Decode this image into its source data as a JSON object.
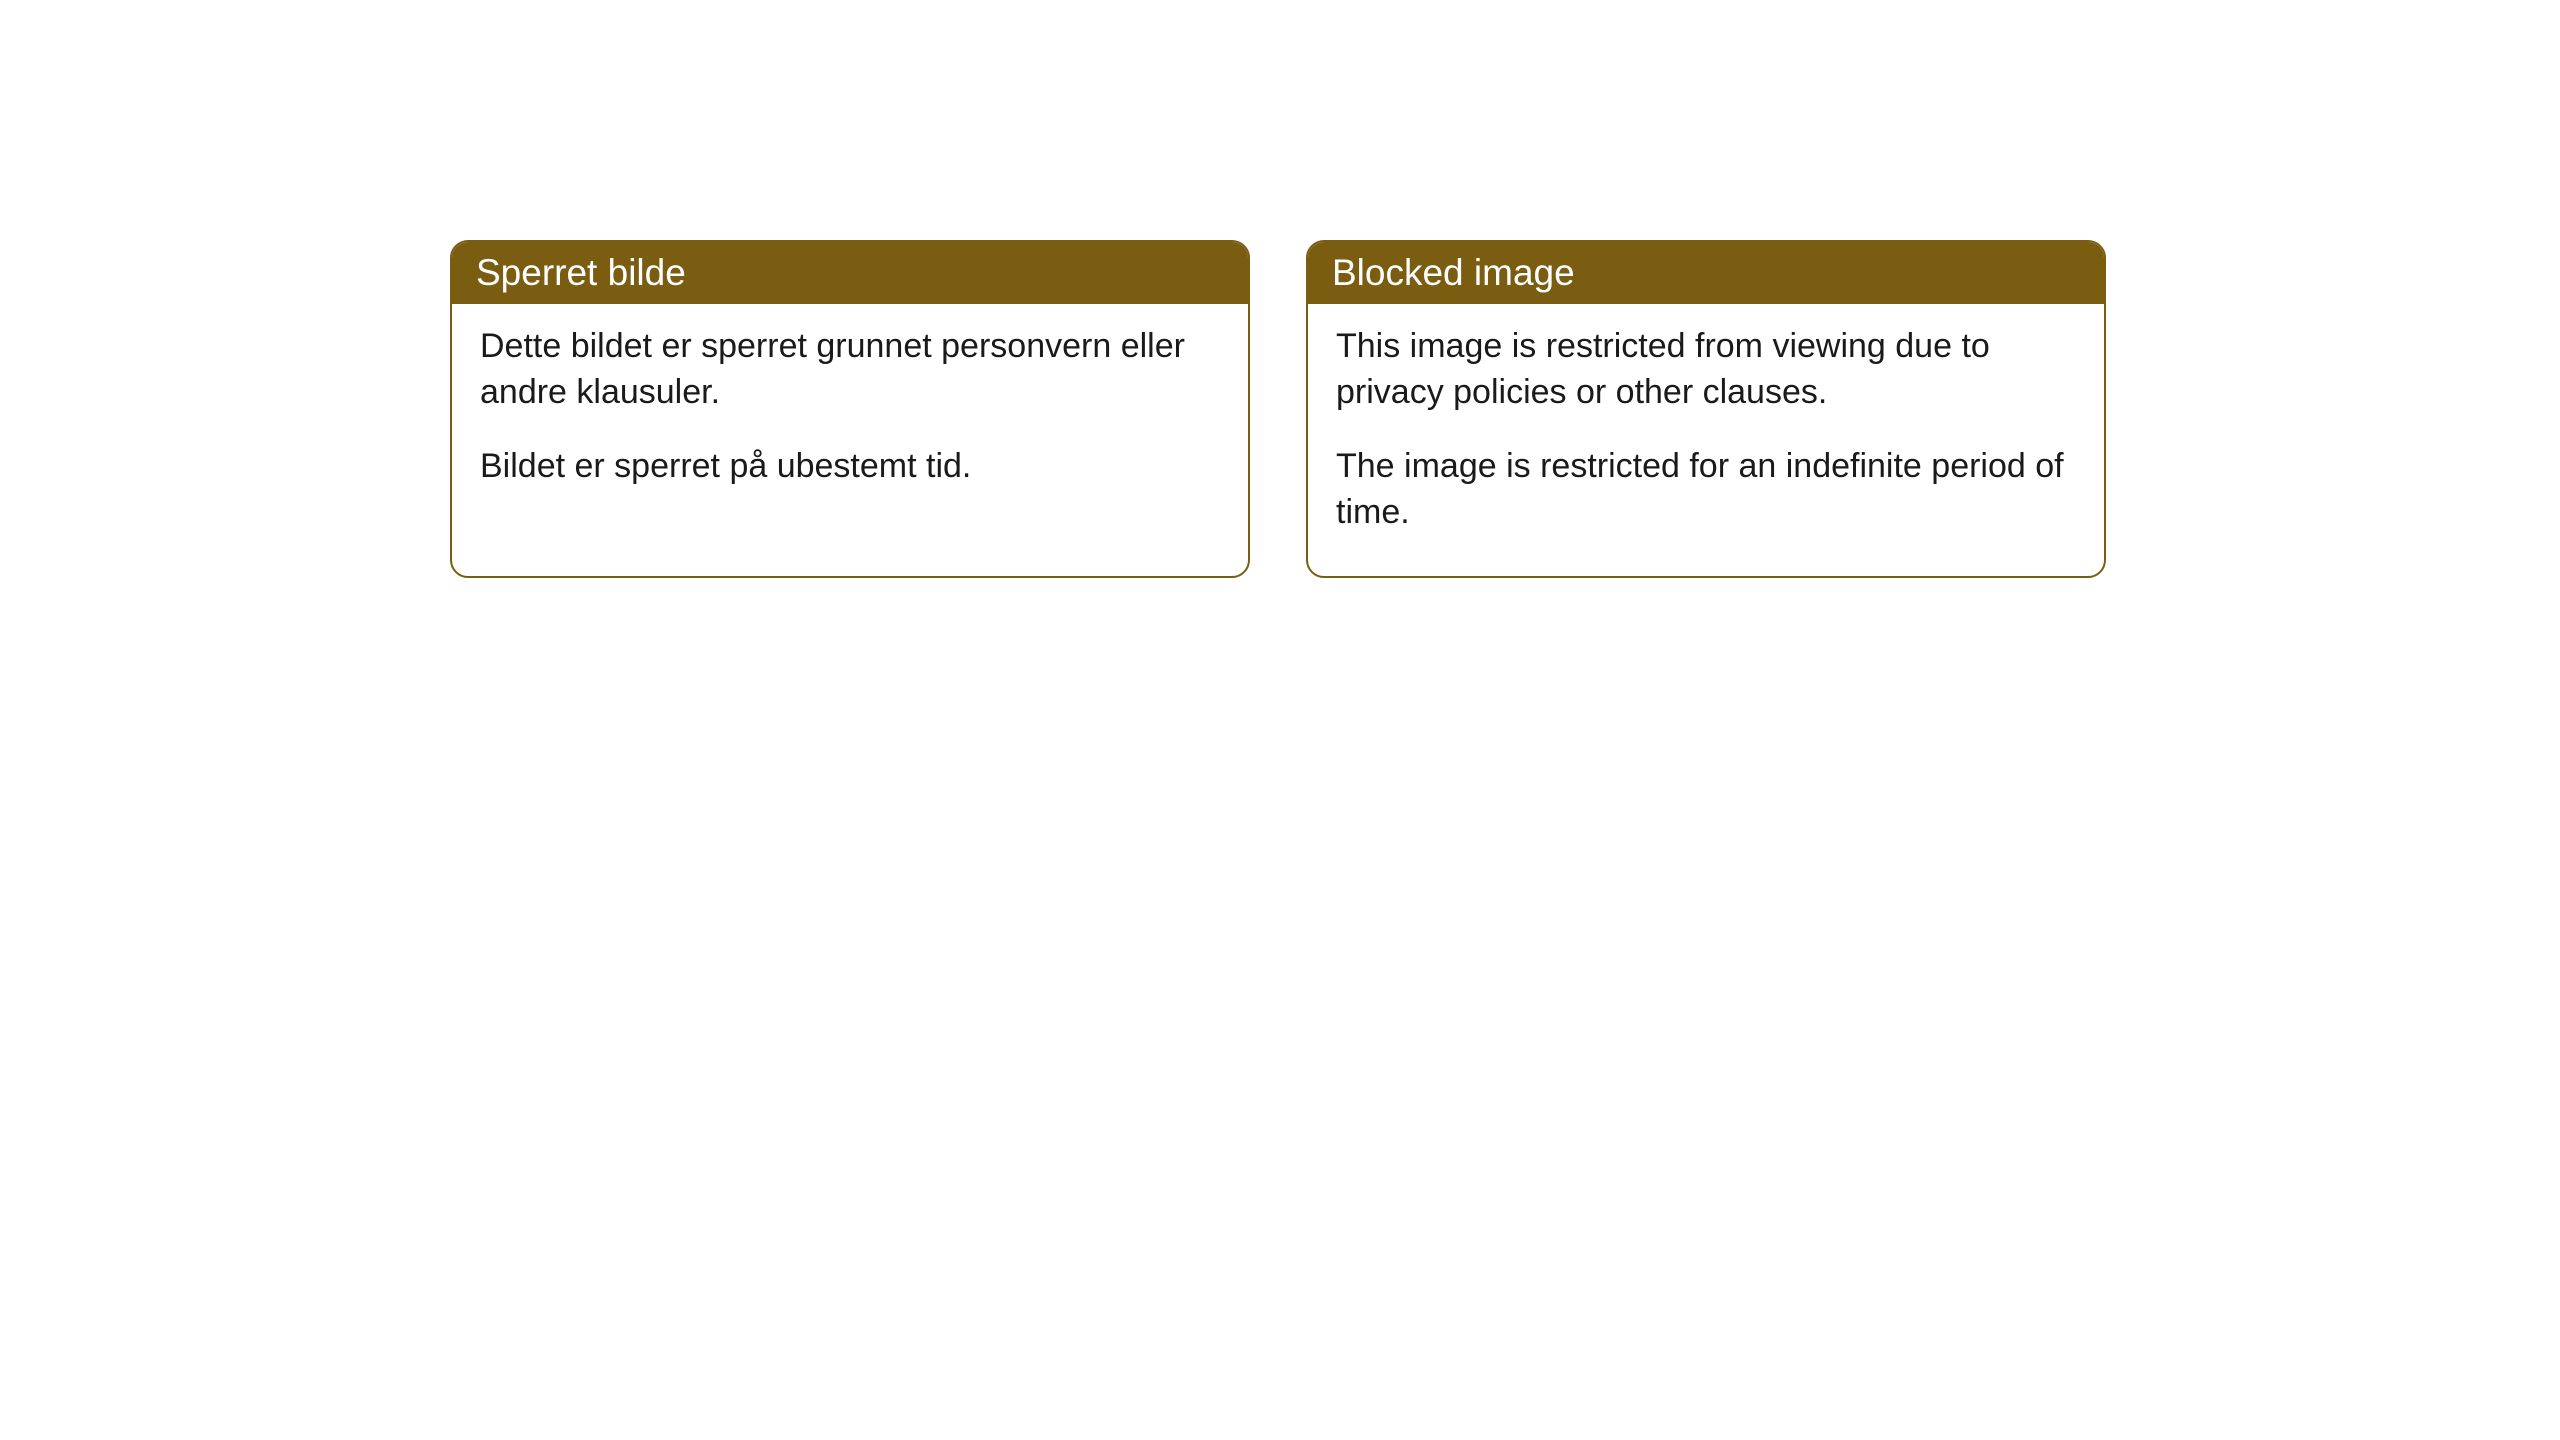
{
  "cards": [
    {
      "title": "Sperret bilde",
      "paragraph1": "Dette bildet er sperret grunnet personvern eller andre klausuler.",
      "paragraph2": "Bildet er sperret på ubestemt tid."
    },
    {
      "title": "Blocked image",
      "paragraph1": "This image is restricted from viewing due to privacy policies or other clauses.",
      "paragraph2": "The image is restricted for an indefinite period of time."
    }
  ],
  "style": {
    "header_bg": "#7a5d11",
    "header_text_color": "#ffffff",
    "border_color": "#7a5d11",
    "body_bg": "#ffffff",
    "body_text_color": "#1a1a1a",
    "border_radius": 18,
    "header_fontsize": 37,
    "body_fontsize": 34
  }
}
